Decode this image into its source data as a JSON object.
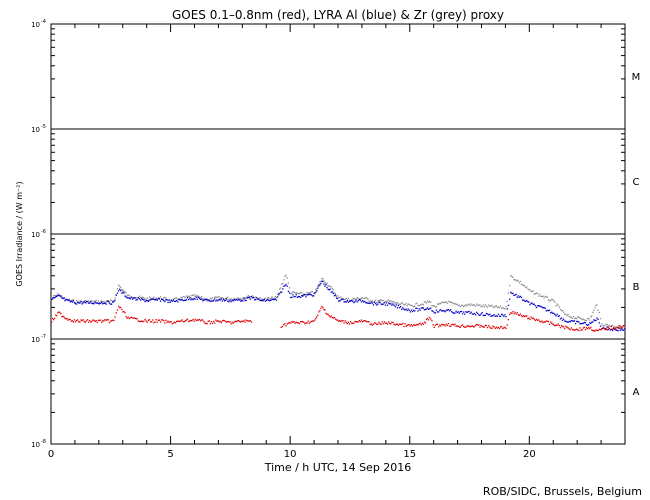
{
  "chart_data": {
    "type": "scatter",
    "title": "GOES 0.1–0.8nm (red), LYRA Al (blue) & Zr (grey) proxy",
    "xlabel": "Time / h UTC, 14 Sep 2016",
    "ylabel": "GOES Irradiance / (W m⁻²)",
    "credit": "ROB/SIDC, Brussels, Belgium",
    "xlim": [
      0,
      24
    ],
    "ylim": [
      1e-08,
      0.0001
    ],
    "yscale": "log",
    "x_ticks": [
      0,
      5,
      10,
      15,
      20
    ],
    "x_tick_labels": [
      "0",
      "5",
      "10",
      "15",
      "20"
    ],
    "y_ticks": [
      {
        "base": "10",
        "exp": "-4"
      },
      {
        "base": "10",
        "exp": "-5"
      },
      {
        "base": "10",
        "exp": "-6"
      },
      {
        "base": "10",
        "exp": "-7"
      },
      {
        "base": "10",
        "exp": "-8"
      }
    ],
    "flare_class_lines": [
      1e-05,
      1e-06,
      1e-07
    ],
    "flare_classes": [
      {
        "label": "M",
        "y": 3.2e-05
      },
      {
        "label": "C",
        "y": 3.2e-06
      },
      {
        "label": "B",
        "y": 3.2e-07
      },
      {
        "label": "A",
        "y": 3.2e-08
      }
    ],
    "series": [
      {
        "name": "Zr proxy",
        "color": "#909090",
        "points": [
          [
            0,
            2.5e-07
          ],
          [
            0.3,
            2.7e-07
          ],
          [
            0.6,
            2.4e-07
          ],
          [
            1,
            2.3e-07
          ],
          [
            2,
            2.3e-07
          ],
          [
            2.6,
            2.3e-07
          ],
          [
            2.8,
            3.3e-07
          ],
          [
            3.2,
            2.6e-07
          ],
          [
            4,
            2.45e-07
          ],
          [
            4.6,
            2.5e-07
          ],
          [
            5,
            2.35e-07
          ],
          [
            5.5,
            2.5e-07
          ],
          [
            6,
            2.6e-07
          ],
          [
            6.5,
            2.4e-07
          ],
          [
            7,
            2.5e-07
          ],
          [
            7.5,
            2.45e-07
          ],
          [
            8,
            2.5e-07
          ],
          [
            8.4,
            2.6e-07
          ],
          [
            8.8,
            2.4e-07
          ],
          [
            9.4,
            2.5e-07
          ],
          [
            9.8,
            4.2e-07
          ],
          [
            10,
            2.8e-07
          ],
          [
            10.5,
            2.7e-07
          ],
          [
            11,
            2.8e-07
          ],
          [
            11.3,
            3.8e-07
          ],
          [
            11.6,
            3.3e-07
          ],
          [
            12,
            2.5e-07
          ],
          [
            12.5,
            2.4e-07
          ],
          [
            13,
            2.5e-07
          ],
          [
            13.5,
            2.3e-07
          ],
          [
            14,
            2.35e-07
          ],
          [
            14.5,
            2.2e-07
          ],
          [
            15,
            2.1e-07
          ],
          [
            15.5,
            2.2e-07
          ],
          [
            15.8,
            2.3e-07
          ],
          [
            16,
            2.05e-07
          ],
          [
            16.5,
            2.3e-07
          ],
          [
            17,
            2.1e-07
          ],
          [
            17.5,
            2.15e-07
          ],
          [
            18,
            2.1e-07
          ],
          [
            18.5,
            2.05e-07
          ],
          [
            19,
            2e-07
          ],
          [
            19.2,
            4e-07
          ],
          [
            19.6,
            3.5e-07
          ],
          [
            20,
            2.9e-07
          ],
          [
            20.5,
            2.6e-07
          ],
          [
            21,
            2.3e-07
          ],
          [
            21.5,
            1.7e-07
          ],
          [
            22,
            1.6e-07
          ],
          [
            22.5,
            1.55e-07
          ],
          [
            22.8,
            2.2e-07
          ],
          [
            23,
            1.4e-07
          ],
          [
            23.5,
            1.35e-07
          ],
          [
            24,
            1.3e-07
          ]
        ]
      },
      {
        "name": "LYRA Al",
        "color": "#0000c8",
        "points": [
          [
            0,
            2.4e-07
          ],
          [
            0.3,
            2.6e-07
          ],
          [
            0.6,
            2.35e-07
          ],
          [
            1,
            2.25e-07
          ],
          [
            2,
            2.25e-07
          ],
          [
            2.6,
            2.25e-07
          ],
          [
            2.8,
            3e-07
          ],
          [
            3.2,
            2.5e-07
          ],
          [
            4,
            2.35e-07
          ],
          [
            4.6,
            2.4e-07
          ],
          [
            5,
            2.3e-07
          ],
          [
            5.5,
            2.4e-07
          ],
          [
            6,
            2.5e-07
          ],
          [
            6.5,
            2.35e-07
          ],
          [
            7,
            2.4e-07
          ],
          [
            7.5,
            2.35e-07
          ],
          [
            8,
            2.4e-07
          ],
          [
            8.4,
            2.5e-07
          ],
          [
            8.8,
            2.35e-07
          ],
          [
            9.4,
            2.4e-07
          ],
          [
            9.8,
            3.4e-07
          ],
          [
            10,
            2.6e-07
          ],
          [
            10.5,
            2.6e-07
          ],
          [
            11,
            2.7e-07
          ],
          [
            11.3,
            3.6e-07
          ],
          [
            11.6,
            3e-07
          ],
          [
            12,
            2.4e-07
          ],
          [
            12.5,
            2.3e-07
          ],
          [
            13,
            2.35e-07
          ],
          [
            13.5,
            2.2e-07
          ],
          [
            14,
            2.2e-07
          ],
          [
            14.5,
            2.05e-07
          ],
          [
            15,
            1.9e-07
          ],
          [
            15.5,
            1.95e-07
          ],
          [
            15.8,
            2e-07
          ],
          [
            16,
            1.85e-07
          ],
          [
            16.5,
            1.9e-07
          ],
          [
            17,
            1.8e-07
          ],
          [
            17.5,
            1.8e-07
          ],
          [
            18,
            1.75e-07
          ],
          [
            18.5,
            1.7e-07
          ],
          [
            19,
            1.7e-07
          ],
          [
            19.2,
            2.8e-07
          ],
          [
            19.6,
            2.5e-07
          ],
          [
            20,
            2.2e-07
          ],
          [
            20.5,
            2e-07
          ],
          [
            21,
            1.8e-07
          ],
          [
            21.5,
            1.5e-07
          ],
          [
            22,
            1.45e-07
          ],
          [
            22.5,
            1.4e-07
          ],
          [
            22.8,
            1.6e-07
          ],
          [
            23,
            1.3e-07
          ],
          [
            23.5,
            1.25e-07
          ],
          [
            24,
            1.25e-07
          ]
        ]
      },
      {
        "name": "GOES 0.1–0.8nm",
        "color": "#e00000",
        "points": [
          [
            0,
            1.5e-07
          ],
          [
            0.3,
            1.8e-07
          ],
          [
            0.6,
            1.6e-07
          ],
          [
            1,
            1.5e-07
          ],
          [
            2,
            1.5e-07
          ],
          [
            2.6,
            1.5e-07
          ],
          [
            2.8,
            2.1e-07
          ],
          [
            3.2,
            1.6e-07
          ],
          [
            4,
            1.5e-07
          ],
          [
            4.6,
            1.5e-07
          ],
          [
            5,
            1.45e-07
          ],
          [
            5.5,
            1.5e-07
          ],
          [
            6,
            1.55e-07
          ],
          [
            6.5,
            1.45e-07
          ],
          [
            7,
            1.5e-07
          ],
          [
            7.5,
            1.45e-07
          ],
          [
            8,
            1.5e-07
          ],
          [
            8.4,
            1.5e-07
          ],
          null,
          [
            9.6,
            1.35e-07
          ],
          [
            9.8,
            1.4e-07
          ],
          [
            10,
            1.45e-07
          ],
          [
            10.5,
            1.45e-07
          ],
          [
            11,
            1.5e-07
          ],
          [
            11.3,
            2.05e-07
          ],
          [
            11.6,
            1.7e-07
          ],
          [
            12,
            1.5e-07
          ],
          [
            12.5,
            1.45e-07
          ],
          [
            13,
            1.5e-07
          ],
          [
            13.5,
            1.4e-07
          ],
          [
            14,
            1.45e-07
          ],
          [
            14.5,
            1.4e-07
          ],
          [
            15,
            1.35e-07
          ],
          [
            15.5,
            1.4e-07
          ],
          [
            15.8,
            1.6e-07
          ],
          [
            16,
            1.35e-07
          ],
          [
            16.5,
            1.4e-07
          ],
          [
            17,
            1.35e-07
          ],
          [
            17.5,
            1.35e-07
          ],
          [
            18,
            1.35e-07
          ],
          [
            18.5,
            1.3e-07
          ],
          [
            19,
            1.3e-07
          ],
          [
            19.2,
            1.85e-07
          ],
          [
            19.6,
            1.7e-07
          ],
          [
            20,
            1.6e-07
          ],
          [
            20.5,
            1.5e-07
          ],
          [
            21,
            1.4e-07
          ],
          [
            21.5,
            1.3e-07
          ],
          [
            22,
            1.25e-07
          ],
          [
            22.5,
            1.3e-07
          ],
          [
            22.8,
            1.2e-07
          ],
          [
            23,
            1.25e-07
          ],
          [
            23.5,
            1.3e-07
          ],
          [
            24,
            1.35e-07
          ]
        ]
      }
    ]
  }
}
